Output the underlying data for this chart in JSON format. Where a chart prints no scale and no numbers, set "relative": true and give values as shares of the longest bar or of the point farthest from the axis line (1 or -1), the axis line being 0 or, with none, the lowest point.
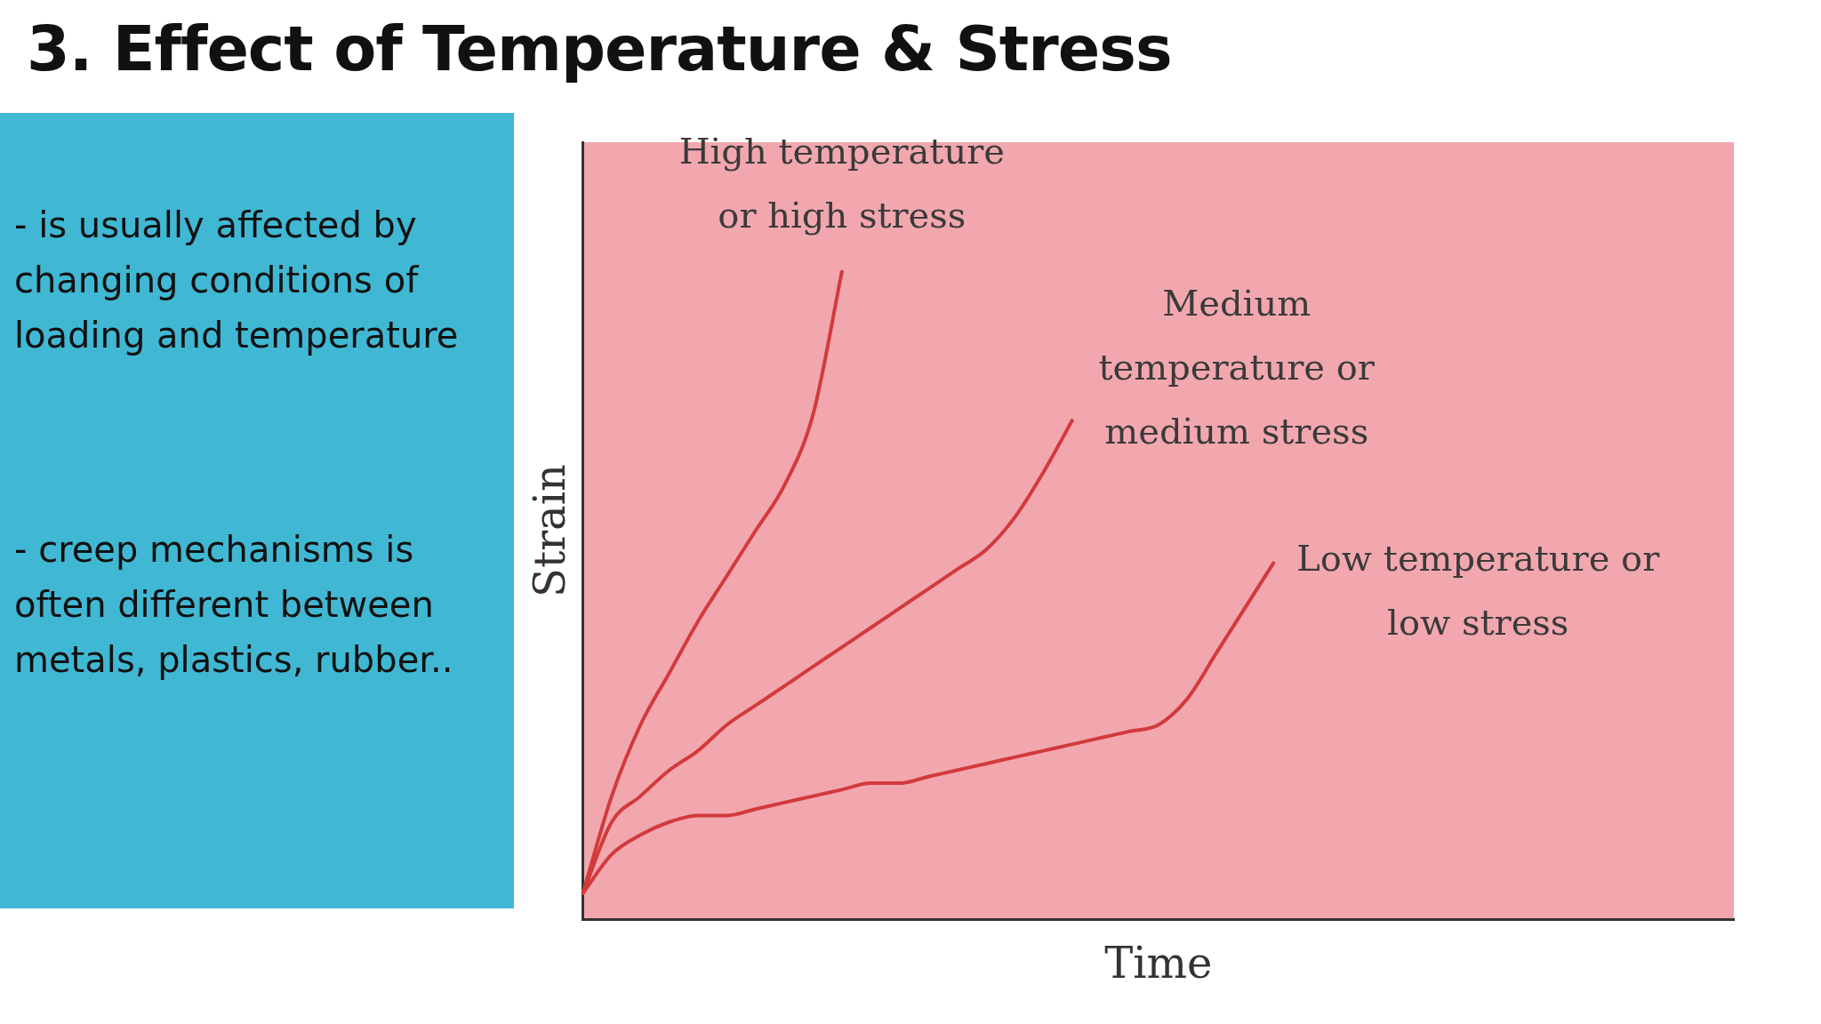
{
  "chart_data": {
    "type": "line",
    "title": "3. Effect of Temperature & Stress",
    "xlabel": "Time",
    "ylabel": "Strain",
    "relative": true,
    "categories": [
      null,
      null,
      null,
      null,
      null,
      null,
      null,
      null,
      null,
      null,
      null,
      null,
      null,
      null,
      null,
      null,
      null,
      null,
      null,
      null,
      null,
      null,
      null,
      null,
      null,
      null,
      null,
      null,
      null,
      null,
      null,
      null,
      null,
      null,
      null,
      null,
      null,
      null,
      null,
      null,
      null
    ],
    "series": [
      {
        "name": "High temperature or high stress",
        "color": "#d23a3c",
        "values": [
          0.04,
          0.19,
          0.3,
          0.38,
          0.46,
          0.53,
          0.6,
          0.67,
          0.78,
          1.0,
          null,
          null,
          null,
          null,
          null,
          null,
          null,
          null,
          null,
          null,
          null,
          null,
          null,
          null,
          null,
          null,
          null,
          null,
          null,
          null,
          null,
          null,
          null,
          null,
          null,
          null,
          null,
          null,
          null,
          null,
          null
        ]
      },
      {
        "name": "Medium temperature or medium stress",
        "color": "#d23a3c",
        "values": [
          0.04,
          0.15,
          0.19,
          0.23,
          0.26,
          0.3,
          0.33,
          0.36,
          0.39,
          0.42,
          0.45,
          0.48,
          0.51,
          0.54,
          0.57,
          0.62,
          0.69,
          0.77,
          null,
          null,
          null,
          null,
          null,
          null,
          null,
          null,
          null,
          null,
          null,
          null,
          null,
          null,
          null,
          null,
          null,
          null,
          null,
          null,
          null,
          null,
          null
        ]
      },
      {
        "name": "Low temperature or low stress",
        "color": "#d23a3c",
        "values": [
          0.04,
          0.1,
          0.13,
          0.15,
          0.16,
          0.16,
          0.17,
          0.18,
          0.19,
          0.2,
          0.21,
          0.21,
          0.22,
          0.23,
          0.24,
          0.25,
          0.26,
          0.27,
          0.28,
          0.29,
          0.3,
          0.34,
          0.41,
          0.48,
          0.55,
          null,
          null,
          null,
          null,
          null,
          null,
          null,
          null,
          null,
          null,
          null,
          null,
          null,
          null,
          null,
          null
        ]
      }
    ],
    "annotations": [
      "- is usually affected by changing conditions of loading and temperature",
      "- creep mechanisms is often different between metals, plastics, rubber.."
    ],
    "legend": false,
    "grid": false,
    "marker": "none",
    "line_style": "solid"
  }
}
